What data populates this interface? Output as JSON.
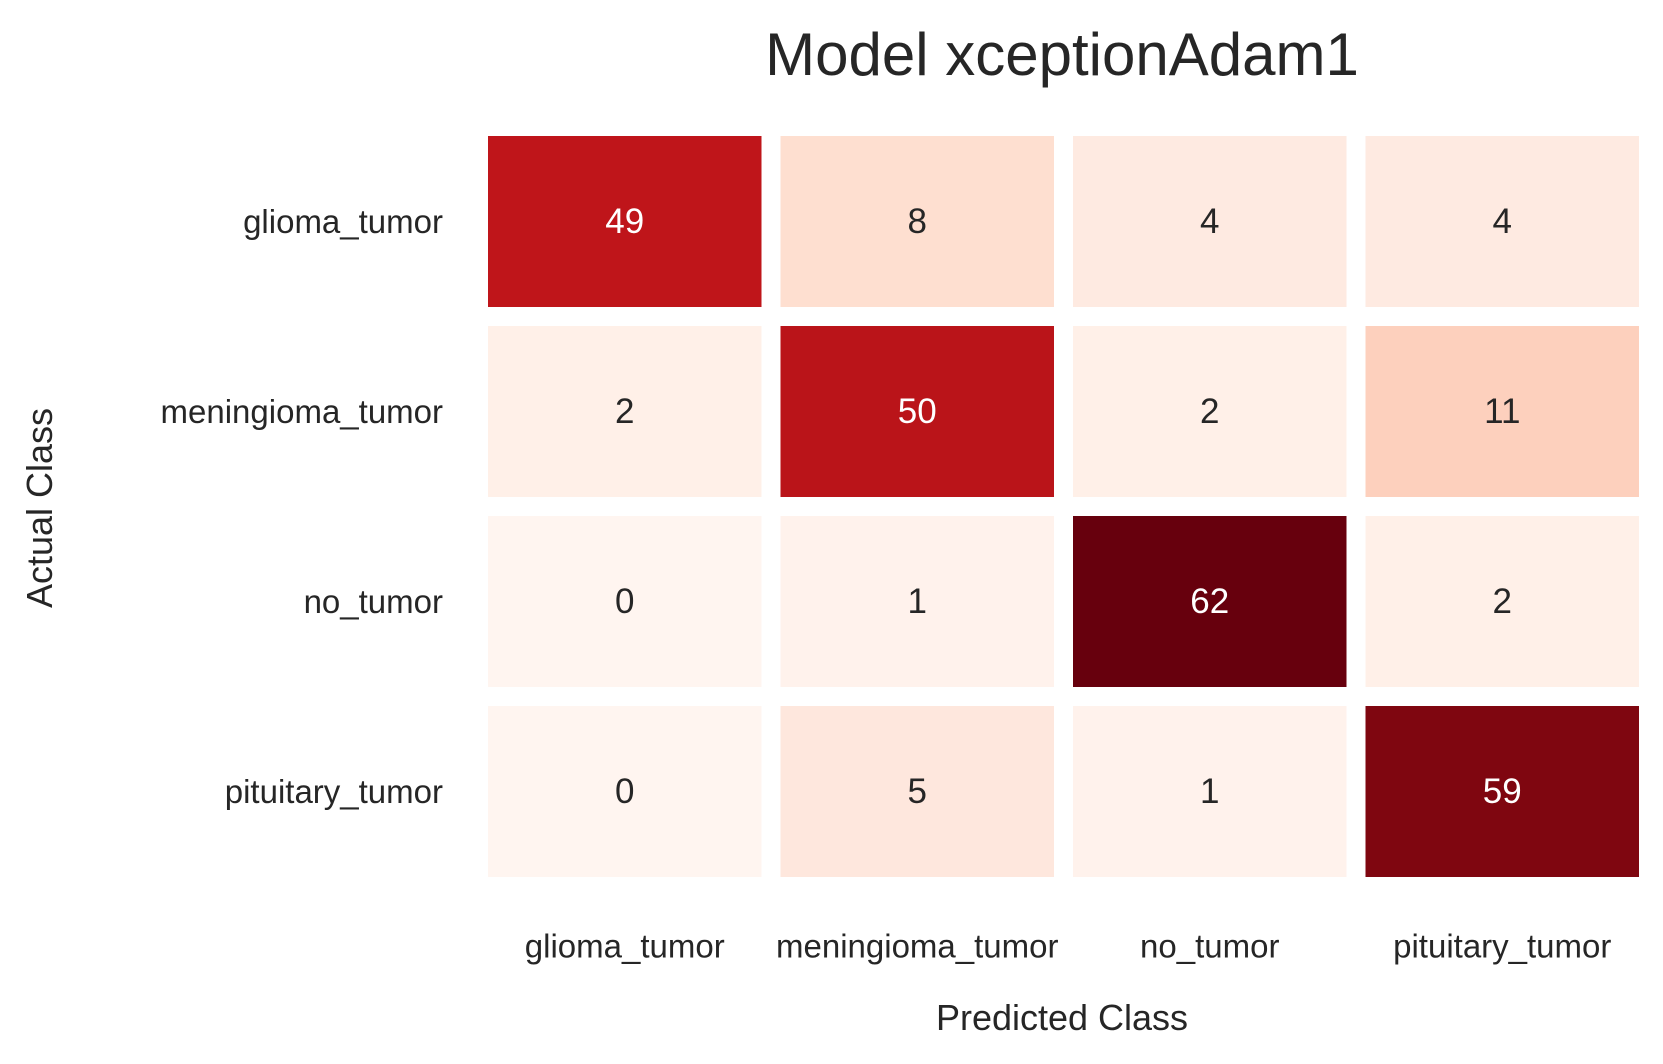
{
  "chart_data": {
    "type": "heatmap",
    "title": "Model xceptionAdam1",
    "xlabel": "Predicted Class",
    "ylabel": "Actual Class",
    "x_categories": [
      "glioma_tumor",
      "meningioma_tumor",
      "no_tumor",
      "pituitary_tumor"
    ],
    "y_categories": [
      "glioma_tumor",
      "meningioma_tumor",
      "no_tumor",
      "pituitary_tumor"
    ],
    "values": [
      [
        49,
        8,
        4,
        4
      ],
      [
        2,
        50,
        2,
        11
      ],
      [
        0,
        1,
        62,
        2
      ],
      [
        0,
        5,
        1,
        59
      ]
    ],
    "colormap": "Reds",
    "vmin": 0,
    "vmax": 62,
    "colors": {
      "low": "#fff5f0",
      "high": "#67000d",
      "text_dark": "#262626",
      "text_light": "#ffffff"
    },
    "colorbar": false
  }
}
